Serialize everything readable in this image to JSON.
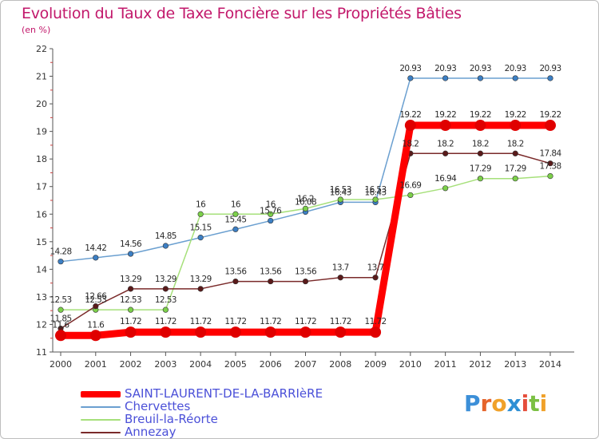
{
  "title": "Evolution du Taux de Taxe Foncière sur les Propriétés Bâties",
  "unit": "(en %)",
  "logo": {
    "letters": [
      "P",
      "r",
      "o",
      "x",
      "i",
      "t",
      "i"
    ],
    "colors": [
      "#3c8fd8",
      "#e5642b",
      "#f0a12a",
      "#2f8fd4",
      "#e54e3b",
      "#7bc043",
      "#f0a12a"
    ]
  },
  "chart_data": {
    "type": "line",
    "title": "Evolution du Taux de Taxe Foncière sur les Propriétés Bâties",
    "ylabel": "(en %)",
    "xlabel": "",
    "categories": [
      "2000",
      "2001",
      "2002",
      "2003",
      "2004",
      "2005",
      "2006",
      "2007",
      "2008",
      "2009",
      "2010",
      "2011",
      "2012",
      "2013",
      "2014"
    ],
    "ylim": [
      11,
      22
    ],
    "yticks": [
      "11",
      "12",
      "13",
      "14",
      "15",
      "16",
      "17",
      "18",
      "19",
      "20",
      "21",
      "22"
    ],
    "grid": false,
    "legend_position": "bottom-left",
    "series": [
      {
        "name": "SAINT-LAURENT-DE-LA-BARRIèRE",
        "color": "#ff0000",
        "marker_fill": "#e00000",
        "thick": true,
        "values": [
          11.6,
          11.6,
          11.72,
          11.72,
          11.72,
          11.72,
          11.72,
          11.72,
          11.72,
          11.72,
          19.22,
          19.22,
          19.22,
          19.22,
          19.22
        ],
        "labels": [
          "11.6",
          "11.6",
          "11.72",
          "11.72",
          "11.72",
          "11.72",
          "11.72",
          "11.72",
          "11.72",
          "11.72",
          "19.22",
          "19.22",
          "19.22",
          "19.22",
          "19.22"
        ]
      },
      {
        "name": "Chervettes",
        "color": "#6a9fd0",
        "marker_fill": "#3c7fc4",
        "thick": false,
        "values": [
          14.28,
          14.42,
          14.56,
          14.85,
          15.15,
          15.45,
          15.76,
          16.08,
          16.43,
          16.43,
          20.93,
          20.93,
          20.93,
          20.93,
          20.93
        ],
        "labels": [
          "14.28",
          "14.42",
          "14.56",
          "14.85",
          "15.15",
          "15.45",
          "15.76",
          "16.08",
          "16.43",
          "16.43",
          "20.93",
          "20.93",
          "20.93",
          "20.93",
          "20.93"
        ]
      },
      {
        "name": "Breuil-la-Réorte",
        "color": "#a6e07a",
        "marker_fill": "#7cd04a",
        "thick": false,
        "values": [
          12.53,
          12.53,
          12.53,
          12.53,
          16,
          16,
          16,
          16.2,
          16.53,
          16.53,
          16.69,
          16.94,
          17.29,
          17.29,
          17.38
        ],
        "labels": [
          "12.53",
          "12.53",
          "12.53",
          "12.53",
          "16",
          "16",
          "16",
          "16.2",
          "16.53",
          "16.53",
          "16.69",
          "16.94",
          "17.29",
          "17.29",
          "17.38"
        ]
      },
      {
        "name": "Annezay",
        "color": "#7a2a2a",
        "marker_fill": "#5a1a1a",
        "thick": false,
        "values": [
          11.85,
          12.66,
          13.29,
          13.29,
          13.29,
          13.56,
          13.56,
          13.56,
          13.7,
          13.7,
          18.2,
          18.2,
          18.2,
          18.2,
          17.84
        ],
        "labels": [
          "11.85",
          "12.66",
          "13.29",
          "13.29",
          "13.29",
          "13.56",
          "13.56",
          "13.56",
          "13.7",
          "13.7",
          "18.2",
          "18.2",
          "18.2",
          "18.2",
          "17.84"
        ]
      }
    ]
  }
}
